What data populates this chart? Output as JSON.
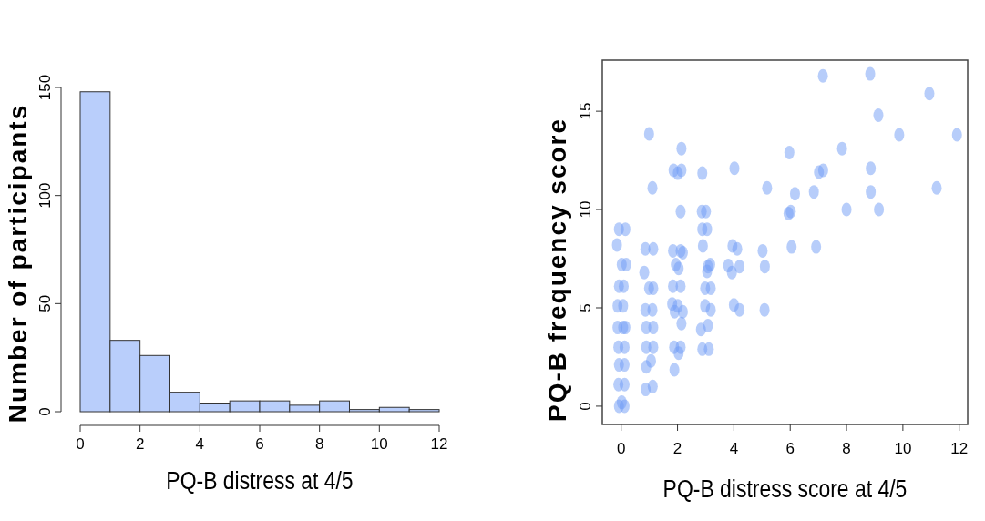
{
  "chart_data": [
    {
      "type": "histogram",
      "xlabel": "PQ-B distress at 4/5",
      "ylabel": "Number of participants",
      "bins": [
        0,
        1,
        2,
        3,
        4,
        5,
        6,
        7,
        8,
        9,
        10,
        11,
        12
      ],
      "values": [
        148,
        33,
        26,
        9,
        4,
        5,
        5,
        3,
        5,
        1,
        2,
        1
      ],
      "color": "#b9cefb",
      "xlim": [
        0,
        12
      ],
      "xticks": [
        0,
        2,
        4,
        6,
        8,
        10,
        12
      ],
      "ylim": [
        0,
        150
      ],
      "yticks": [
        0,
        50,
        100,
        150
      ],
      "grid": false
    },
    {
      "type": "scatter",
      "xlabel": "PQ-B distress score at 4/5",
      "ylabel": "PQ-B frequency score",
      "marker": "circle",
      "xlim": [
        -0.67,
        12.3
      ],
      "ylim": [
        -0.93,
        17.6
      ],
      "xticks": [
        0,
        2,
        4,
        6,
        8,
        10,
        12
      ],
      "yticks": [
        0,
        5,
        10,
        15
      ],
      "grid": false,
      "series": [
        {
          "color": "#6f9cf5",
          "x": [
            -0.08,
            0.15,
            -0.15,
            0.02,
            0.18,
            -0.08,
            0.09,
            -0.13,
            0.07,
            -0.13,
            0.07,
            0.15,
            -0.1,
            0.12,
            -0.08,
            0.12,
            -0.1,
            0.12,
            -0.08,
            0.12,
            0.02,
            0.99,
            1.11,
            0.86,
            1.14,
            0.82,
            0.99,
            1.14,
            0.86,
            1.11,
            0.89,
            1.14,
            0.89,
            1.14,
            0.89,
            1.06,
            0.87,
            1.12,
            2.14,
            1.86,
            2.14,
            2.01,
            2.11,
            1.84,
            2.11,
            2.19,
            1.94,
            2.04,
            1.84,
            2.11,
            1.81,
            2.01,
            2.19,
            1.9,
            2.14,
            1.88,
            2.11,
            2.04,
            1.89,
            2.88,
            2.86,
            3.01,
            2.88,
            3.05,
            2.9,
            3.08,
            3.16,
            3.05,
            2.98,
            3.18,
            2.98,
            3.18,
            2.83,
            3.08,
            2.88,
            3.11,
            4.02,
            3.95,
            4.12,
            3.8,
            3.93,
            4.2,
            4.0,
            4.2,
            5.18,
            5.02,
            5.1,
            5.09,
            7.16,
            8.84,
            10.94,
            9.13,
            9.87,
            11.92,
            5.97,
            7.84,
            7.02,
            7.17,
            8.86,
            6.17,
            6.84,
            8.86,
            11.2,
            5.94,
            6.02,
            8.0,
            9.15,
            6.05,
            6.92
          ],
          "values": [
            9.0,
            9.0,
            8.2,
            7.2,
            7.2,
            6.1,
            6.1,
            5.1,
            5.1,
            4.0,
            4.0,
            4.0,
            3.0,
            3.0,
            2.1,
            2.1,
            1.1,
            1.1,
            0,
            0,
            0.2,
            13.85,
            11.1,
            8.0,
            8.0,
            6.8,
            6.0,
            6.0,
            4.9,
            4.9,
            4.0,
            4.0,
            3.0,
            3.0,
            2.0,
            2.3,
            0.85,
            1.0,
            13.1,
            12.0,
            12.0,
            11.85,
            9.9,
            7.9,
            7.9,
            7.8,
            7.2,
            7.0,
            6.1,
            6.1,
            5.2,
            5.1,
            4.8,
            4.8,
            4.2,
            3.0,
            3.0,
            2.7,
            1.85,
            11.85,
            9.9,
            9.9,
            9.0,
            9.0,
            8.15,
            7.1,
            7.2,
            6.85,
            6.0,
            6.0,
            5.1,
            4.9,
            3.9,
            4.1,
            2.9,
            2.9,
            12.1,
            8.15,
            8.0,
            7.15,
            6.8,
            7.1,
            5.15,
            4.9,
            11.1,
            7.9,
            7.1,
            4.9,
            16.8,
            16.9,
            15.9,
            14.8,
            13.8,
            13.8,
            12.9,
            13.1,
            11.9,
            12.0,
            12.1,
            10.8,
            10.9,
            10.9,
            11.1,
            9.8,
            9.9,
            10.0,
            10.0,
            8.1,
            8.1
          ]
        }
      ]
    }
  ]
}
